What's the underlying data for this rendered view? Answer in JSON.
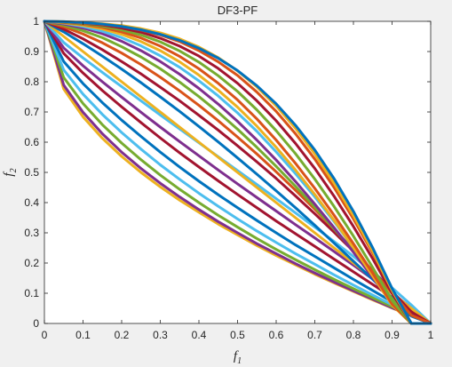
{
  "window": {
    "background": "#f0f0f0"
  },
  "chart_data": {
    "type": "line",
    "title": "DF3-PF",
    "xlabel": {
      "base": "f",
      "sub": "1"
    },
    "ylabel": {
      "base": "f",
      "sub": "2"
    },
    "xlim": [
      0,
      1
    ],
    "ylim": [
      0,
      1
    ],
    "xticks": [
      "0",
      "0.1",
      "0.2",
      "0.3",
      "0.4",
      "0.5",
      "0.6",
      "0.7",
      "0.8",
      "0.9",
      "1"
    ],
    "yticks": [
      "0",
      "0.1",
      "0.2",
      "0.3",
      "0.4",
      "0.5",
      "0.6",
      "0.7",
      "0.8",
      "0.9",
      "1"
    ],
    "grid": false,
    "legend": "none",
    "x": [
      0,
      0.05,
      0.1,
      0.15,
      0.2,
      0.25,
      0.3,
      0.35,
      0.4,
      0.45,
      0.5,
      0.55,
      0.6,
      0.65,
      0.7,
      0.75,
      0.8,
      0.85,
      0.9,
      0.95,
      1
    ],
    "series": [
      {
        "color": "#edb120",
        "values": [
          1,
          0.776,
          0.684,
          0.613,
          0.553,
          0.5,
          0.452,
          0.408,
          0.368,
          0.329,
          0.293,
          0.258,
          0.225,
          0.194,
          0.163,
          0.134,
          0.106,
          0.078,
          0.051,
          0.025,
          0
        ]
      },
      {
        "color": "#7e2f8e",
        "values": [
          1,
          0.789,
          0.699,
          0.628,
          0.567,
          0.513,
          0.464,
          0.419,
          0.377,
          0.337,
          0.3,
          0.264,
          0.231,
          0.198,
          0.167,
          0.137,
          0.108,
          0.08,
          0.052,
          0.026,
          0
        ]
      },
      {
        "color": "#77ac30",
        "values": [
          1,
          0.814,
          0.728,
          0.658,
          0.597,
          0.542,
          0.491,
          0.444,
          0.4,
          0.358,
          0.319,
          0.281,
          0.245,
          0.211,
          0.178,
          0.146,
          0.115,
          0.085,
          0.056,
          0.028,
          0
        ]
      },
      {
        "color": "#4dbeee",
        "values": [
          1,
          0.839,
          0.759,
          0.692,
          0.632,
          0.577,
          0.525,
          0.477,
          0.431,
          0.388,
          0.346,
          0.306,
          0.268,
          0.231,
          0.196,
          0.161,
          0.127,
          0.094,
          0.062,
          0.031,
          0
        ]
      },
      {
        "color": "#0072bd",
        "values": [
          1,
          0.867,
          0.794,
          0.731,
          0.673,
          0.619,
          0.567,
          0.518,
          0.471,
          0.426,
          0.383,
          0.341,
          0.3,
          0.26,
          0.222,
          0.184,
          0.146,
          0.109,
          0.072,
          0.036,
          0
        ]
      },
      {
        "color": "#a2142f",
        "values": [
          1,
          0.894,
          0.829,
          0.771,
          0.717,
          0.665,
          0.614,
          0.565,
          0.518,
          0.472,
          0.427,
          0.383,
          0.339,
          0.297,
          0.255,
          0.213,
          0.171,
          0.129,
          0.087,
          0.044,
          0
        ]
      },
      {
        "color": "#7e2f8e",
        "values": [
          1,
          0.912,
          0.853,
          0.8,
          0.749,
          0.699,
          0.65,
          0.602,
          0.555,
          0.508,
          0.462,
          0.417,
          0.372,
          0.327,
          0.283,
          0.238,
          0.193,
          0.147,
          0.1,
          0.051,
          0
        ]
      },
      {
        "color": "#4dbeee",
        "values": [
          1,
          0.93,
          0.879,
          0.831,
          0.784,
          0.737,
          0.69,
          0.644,
          0.598,
          0.552,
          0.506,
          0.46,
          0.413,
          0.366,
          0.319,
          0.271,
          0.222,
          0.171,
          0.118,
          0.061,
          0
        ]
      },
      {
        "color": "#edb120",
        "values": [
          1,
          0.95,
          0.9,
          0.85,
          0.8,
          0.75,
          0.7,
          0.65,
          0.6,
          0.55,
          0.5,
          0.45,
          0.4,
          0.35,
          0.3,
          0.25,
          0.2,
          0.15,
          0.1,
          0.05,
          0
        ]
      },
      {
        "color": "#0072bd",
        "values": [
          1,
          0.965,
          0.926,
          0.885,
          0.842,
          0.797,
          0.75,
          0.702,
          0.652,
          0.601,
          0.548,
          0.494,
          0.439,
          0.383,
          0.325,
          0.266,
          0.206,
          0.146,
          0.085,
          0.024,
          0
        ]
      },
      {
        "color": "#a2142f",
        "values": [
          1,
          0.974,
          0.942,
          0.906,
          0.867,
          0.826,
          0.782,
          0.737,
          0.689,
          0.64,
          0.588,
          0.535,
          0.48,
          0.422,
          0.363,
          0.302,
          0.239,
          0.174,
          0.107,
          0.038,
          0
        ]
      },
      {
        "color": "#d95319",
        "values": [
          1,
          0.982,
          0.958,
          0.929,
          0.895,
          0.857,
          0.815,
          0.77,
          0.722,
          0.671,
          0.617,
          0.561,
          0.502,
          0.441,
          0.378,
          0.312,
          0.244,
          0.174,
          0.102,
          0.027,
          0
        ]
      },
      {
        "color": "#77ac30",
        "values": [
          1,
          0.987,
          0.969,
          0.946,
          0.916,
          0.882,
          0.843,
          0.799,
          0.751,
          0.699,
          0.643,
          0.583,
          0.52,
          0.454,
          0.385,
          0.313,
          0.239,
          0.162,
          0.082,
          0.0,
          0
        ]
      },
      {
        "color": "#7e2f8e",
        "values": [
          1,
          0.991,
          0.978,
          0.959,
          0.934,
          0.903,
          0.867,
          0.825,
          0.778,
          0.726,
          0.669,
          0.607,
          0.541,
          0.47,
          0.395,
          0.317,
          0.236,
          0.152,
          0.065,
          0.0,
          0
        ]
      },
      {
        "color": "#4dbeee",
        "values": [
          1,
          0.994,
          0.983,
          0.967,
          0.946,
          0.919,
          0.886,
          0.848,
          0.803,
          0.753,
          0.697,
          0.636,
          0.568,
          0.496,
          0.419,
          0.337,
          0.251,
          0.161,
          0.068,
          0.0,
          0
        ]
      },
      {
        "color": "#edb120",
        "values": [
          1,
          0.995,
          0.987,
          0.975,
          0.957,
          0.933,
          0.903,
          0.866,
          0.822,
          0.772,
          0.716,
          0.653,
          0.583,
          0.508,
          0.427,
          0.341,
          0.251,
          0.157,
          0.061,
          0.0,
          0
        ]
      },
      {
        "color": "#d95319",
        "values": [
          1,
          0.996,
          0.99,
          0.98,
          0.965,
          0.945,
          0.918,
          0.884,
          0.843,
          0.795,
          0.74,
          0.677,
          0.607,
          0.53,
          0.447,
          0.358,
          0.264,
          0.166,
          0.064,
          0.0,
          0
        ]
      },
      {
        "color": "#77ac30",
        "values": [
          1,
          0.997,
          0.992,
          0.984,
          0.972,
          0.955,
          0.932,
          0.902,
          0.865,
          0.82,
          0.768,
          0.707,
          0.638,
          0.562,
          0.478,
          0.387,
          0.289,
          0.185,
          0.076,
          0.0,
          0
        ]
      },
      {
        "color": "#a2142f",
        "values": [
          1,
          0.998,
          0.994,
          0.988,
          0.978,
          0.964,
          0.944,
          0.918,
          0.885,
          0.844,
          0.795,
          0.737,
          0.671,
          0.596,
          0.513,
          0.421,
          0.321,
          0.214,
          0.1,
          0.0,
          0
        ]
      },
      {
        "color": "#d95319",
        "values": [
          1,
          0.998,
          0.995,
          0.99,
          0.983,
          0.971,
          0.955,
          0.933,
          0.903,
          0.866,
          0.821,
          0.766,
          0.702,
          0.628,
          0.544,
          0.45,
          0.346,
          0.233,
          0.11,
          0.0,
          0
        ]
      },
      {
        "color": "#edb120",
        "values": [
          1,
          0.999,
          0.996,
          0.992,
          0.986,
          0.976,
          0.962,
          0.942,
          0.915,
          0.88,
          0.836,
          0.783,
          0.72,
          0.646,
          0.561,
          0.464,
          0.357,
          0.239,
          0.11,
          0.0,
          0
        ]
      },
      {
        "color": "#0072bd",
        "values": [
          1,
          0.999,
          0.996,
          0.991,
          0.983,
          0.972,
          0.957,
          0.937,
          0.911,
          0.878,
          0.837,
          0.787,
          0.727,
          0.656,
          0.574,
          0.479,
          0.371,
          0.25,
          0.116,
          0.0,
          0
        ]
      }
    ]
  }
}
